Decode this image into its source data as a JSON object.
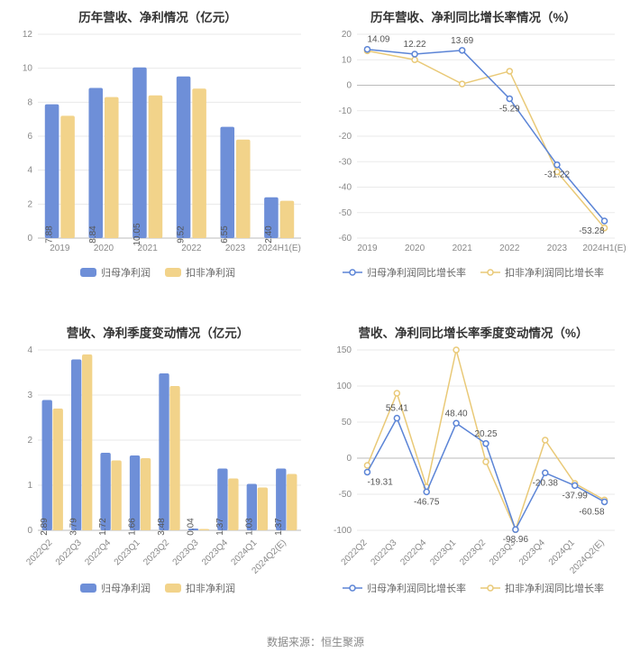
{
  "source_label": "数据来源：恒生聚源",
  "colors": {
    "blue": "#6e8fd8",
    "yellow": "#f2d38a",
    "blue_line": "#5b84d6",
    "yellow_line": "#e9c977",
    "grid": "#eaeaea",
    "axis": "#bbbbbb",
    "axis_text": "#888888",
    "bg": "#ffffff"
  },
  "panels": {
    "annual_bar": {
      "title": "历年营收、净利情况（亿元）",
      "type": "bar",
      "categories": [
        "2019",
        "2020",
        "2021",
        "2022",
        "2023",
        "2024H1(E)"
      ],
      "series": [
        {
          "name": "归母净利润",
          "color": "#6e8fd8",
          "values": [
            7.88,
            8.84,
            10.05,
            9.52,
            6.55,
            2.4
          ],
          "show_label": true
        },
        {
          "name": "扣非净利润",
          "color": "#f2d38a",
          "values": [
            7.2,
            8.3,
            8.4,
            8.8,
            5.8,
            2.2
          ],
          "show_label": false
        }
      ],
      "ylim": [
        0,
        12
      ],
      "ytick_step": 2,
      "bar_width": 0.32,
      "gap": 0.04,
      "title_fontsize": 13.5,
      "label_fontsize": 10,
      "x_rotate": 0
    },
    "annual_line": {
      "title": "历年营收、净利同比增长率情况（%）",
      "type": "line",
      "categories": [
        "2019",
        "2020",
        "2021",
        "2022",
        "2023",
        "2024H1(E)"
      ],
      "series": [
        {
          "name": "归母净利润同比增长率",
          "color": "#5b84d6",
          "values": [
            14.09,
            12.22,
            13.69,
            -5.29,
            -31.22,
            -53.28
          ],
          "show_label": true,
          "marker": "circle"
        },
        {
          "name": "扣非净利润同比增长率",
          "color": "#e9c977",
          "values": [
            13.5,
            10.0,
            0.5,
            5.5,
            -34.0,
            -56.0
          ],
          "show_label": false,
          "marker": "circle"
        }
      ],
      "ylim": [
        -60,
        20
      ],
      "ytick_step": 10,
      "title_fontsize": 13.5,
      "label_fontsize": 10,
      "marker_r": 3,
      "line_width": 1.5,
      "x_rotate": 0
    },
    "quarter_bar": {
      "title": "营收、净利季度变动情况（亿元）",
      "type": "bar",
      "categories": [
        "2022Q2",
        "2022Q3",
        "2022Q4",
        "2023Q1",
        "2023Q2",
        "2023Q3",
        "2023Q4",
        "2024Q1",
        "2024Q2(E)"
      ],
      "series": [
        {
          "name": "归母净利润",
          "color": "#6e8fd8",
          "values": [
            2.89,
            3.79,
            1.72,
            1.66,
            3.48,
            0.04,
            1.37,
            1.03,
            1.37
          ],
          "show_label": true
        },
        {
          "name": "扣非净利润",
          "color": "#f2d38a",
          "values": [
            2.7,
            3.9,
            1.55,
            1.6,
            3.2,
            0.03,
            1.15,
            0.95,
            1.25
          ],
          "show_label": false
        }
      ],
      "ylim": [
        0,
        4
      ],
      "ytick_step": 1,
      "bar_width": 0.35,
      "gap": 0.02,
      "title_fontsize": 13.5,
      "label_fontsize": 10,
      "x_rotate": -45
    },
    "quarter_line": {
      "title": "营收、净利同比增长率季度变动情况（%）",
      "type": "line",
      "categories": [
        "2022Q2",
        "2022Q3",
        "2022Q4",
        "2023Q1",
        "2023Q2",
        "2023Q3",
        "2023Q4",
        "2024Q1",
        "2024Q2(E)"
      ],
      "series": [
        {
          "name": "归母净利润同比增长率",
          "color": "#5b84d6",
          "values": [
            -19.31,
            55.41,
            -46.75,
            48.4,
            20.25,
            -98.96,
            -20.38,
            -37.99,
            -60.58
          ],
          "show_label": true,
          "marker": "circle"
        },
        {
          "name": "扣非净利润同比增长率",
          "color": "#e9c977",
          "values": [
            -10.0,
            90.0,
            -40.0,
            150.0,
            -5.0,
            -99.0,
            25.0,
            -35.0,
            -58.0
          ],
          "show_label": false,
          "marker": "circle"
        }
      ],
      "ylim": [
        -100,
        150
      ],
      "ytick_step": 50,
      "title_fontsize": 13.5,
      "label_fontsize": 10,
      "marker_r": 3,
      "line_width": 1.5,
      "x_rotate": -45
    }
  }
}
